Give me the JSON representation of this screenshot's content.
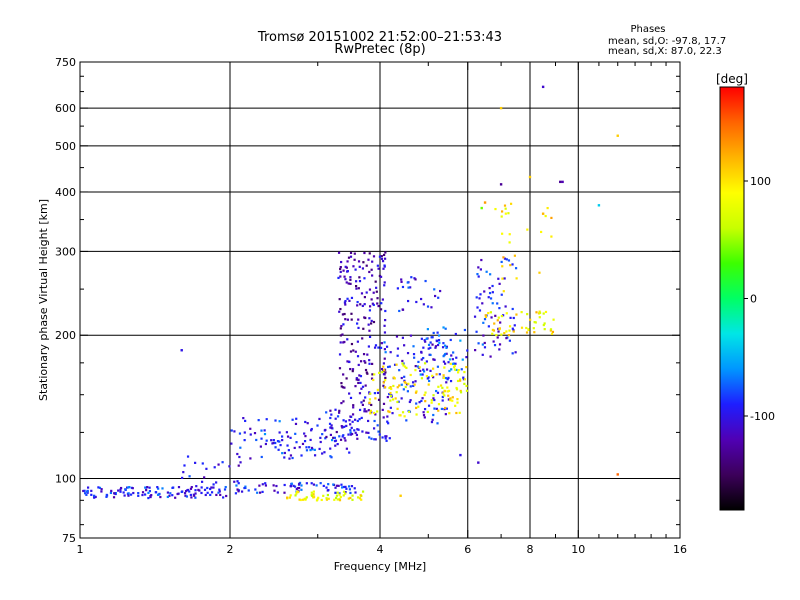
{
  "chart_data": {
    "type": "scatter",
    "title": "Tromsø 20151002 21:52:00–21:53:43",
    "subtitle": "RwPretec (8p)",
    "xlabel": "Frequency [MHz]",
    "ylabel": "Stationary phase Virtual Height [km]",
    "x_scale": "log",
    "y_scale": "log",
    "xlim": [
      1,
      16
    ],
    "ylim": [
      75,
      750
    ],
    "x_ticks": [
      1,
      2,
      4,
      6,
      8,
      10,
      16
    ],
    "y_ticks": [
      75,
      100,
      200,
      300,
      400,
      500,
      600,
      750
    ],
    "x_gridlines": [
      2,
      4,
      6,
      8,
      10
    ],
    "y_gridlines": [
      100,
      200,
      300,
      400,
      500,
      600
    ],
    "grid": true,
    "stats_box": {
      "title": "Phases",
      "line1": "mean, sd,O: -97.8, 17.7",
      "line2": "mean, sd,X:  87.0, 22.3"
    },
    "colorbar": {
      "label": "[deg]",
      "range": [
        -180,
        180
      ],
      "ticks": [
        100,
        0,
        -100
      ],
      "colormap": [
        "#000000",
        "#3c005a",
        "#5000b4",
        "#1e1eff",
        "#0096ff",
        "#00e6e6",
        "#00ff64",
        "#3cff00",
        "#c8ff00",
        "#ffff00",
        "#ffb400",
        "#ff6400",
        "#ff0000"
      ]
    },
    "series": [
      {
        "clusters": [
          {
            "x": [
              1.0,
              2.0
            ],
            "y": [
              91,
              96
            ],
            "phase": -95,
            "n": 120
          },
          {
            "x": [
              2.0,
              3.6
            ],
            "y": [
              93,
              98
            ],
            "phase": -95,
            "n": 70
          },
          {
            "x": [
              1.6,
              2.1
            ],
            "y": [
              93,
              112
            ],
            "phase": -100,
            "n": 25
          },
          {
            "x": [
              2.0,
              3.5
            ],
            "y": [
              110,
              135
            ],
            "phase": -90,
            "n": 110
          },
          {
            "x": [
              3.1,
              4.2
            ],
            "y": [
              120,
              140
            ],
            "phase": -105,
            "n": 70
          },
          {
            "x": [
              3.3,
              4.1
            ],
            "y": [
              140,
              300
            ],
            "phase": -115,
            "n": 210
          },
          {
            "x": [
              4.0,
              5.5
            ],
            "y": [
              130,
              200
            ],
            "phase": -95,
            "n": 110
          },
          {
            "x": [
              4.8,
              6.0
            ],
            "y": [
              160,
              210
            ],
            "phase": -80,
            "n": 60
          },
          {
            "x": [
              6.2,
              7.5
            ],
            "y": [
              180,
              290
            ],
            "phase": -95,
            "n": 70
          },
          {
            "x": [
              4.3,
              5.3
            ],
            "y": [
              225,
              265
            ],
            "phase": -100,
            "n": 25
          }
        ]
      },
      {
        "clusters": [
          {
            "x": [
              2.6,
              3.7
            ],
            "y": [
              90,
              94
            ],
            "phase": 85,
            "n": 55
          },
          {
            "x": [
              3.8,
              6.0
            ],
            "y": [
              135,
              175
            ],
            "phase": 90,
            "n": 120
          },
          {
            "x": [
              6.5,
              9.0
            ],
            "y": [
              200,
              225
            ],
            "phase": 95,
            "n": 50
          },
          {
            "x": [
              6.8,
              9.0
            ],
            "y": [
              240,
              380
            ],
            "phase": 100,
            "n": 25
          }
        ]
      }
    ],
    "scattered_points": [
      {
        "x": 1.6,
        "y": 186,
        "phase": -100
      },
      {
        "x": 7.0,
        "y": 415,
        "phase": -130
      },
      {
        "x": 8.5,
        "y": 665,
        "phase": -110
      },
      {
        "x": 9.2,
        "y": 420,
        "phase": -130
      },
      {
        "x": 9.3,
        "y": 420,
        "phase": -120
      },
      {
        "x": 12.0,
        "y": 525,
        "phase": 110
      },
      {
        "x": 7.0,
        "y": 600,
        "phase": 110
      },
      {
        "x": 11.0,
        "y": 375,
        "phase": -40
      },
      {
        "x": 8.0,
        "y": 430,
        "phase": 110
      },
      {
        "x": 8.5,
        "y": 360,
        "phase": 120
      },
      {
        "x": 12.0,
        "y": 102,
        "phase": 150
      },
      {
        "x": 6.3,
        "y": 108,
        "phase": -110
      },
      {
        "x": 5.8,
        "y": 112,
        "phase": -100
      },
      {
        "x": 4.4,
        "y": 92,
        "phase": 110
      },
      {
        "x": 6.5,
        "y": 380,
        "phase": 130
      },
      {
        "x": 6.4,
        "y": 370,
        "phase": 40
      }
    ]
  }
}
